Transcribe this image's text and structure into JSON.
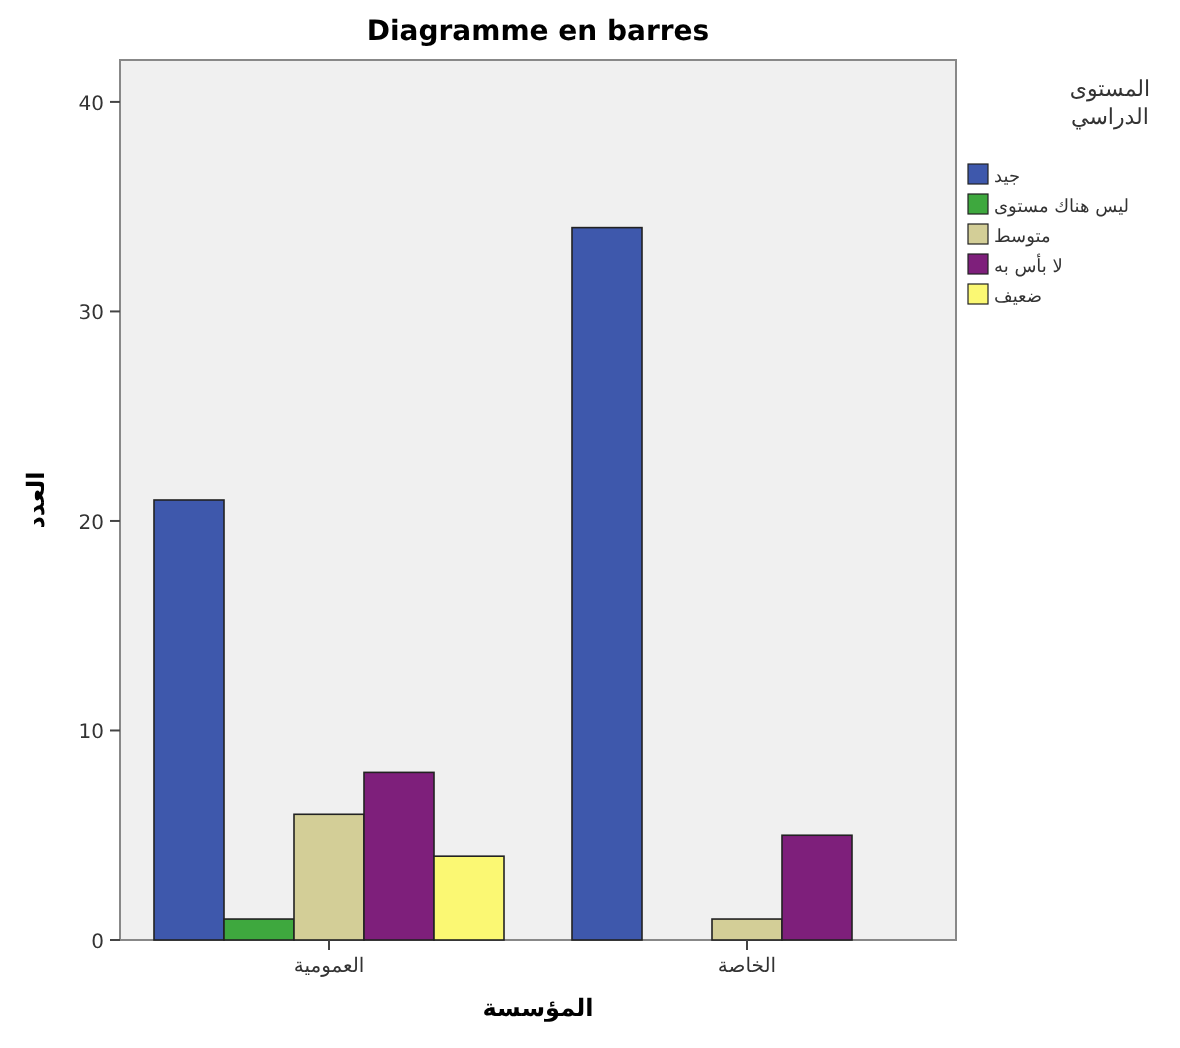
{
  "chart_data": {
    "type": "bar",
    "title": "Diagramme en barres",
    "xlabel": "المؤسسة",
    "ylabel": "العدد",
    "legend_title": "المستوى الدراسي",
    "categories": [
      "العمومية",
      "الخاصة"
    ],
    "series": [
      {
        "name": "جيد",
        "color": "#3e58ac",
        "values": [
          21,
          34
        ]
      },
      {
        "name": "ليس هناك مستوى",
        "color": "#3ea83e",
        "values": [
          1,
          null
        ]
      },
      {
        "name": "متوسط",
        "color": "#d3ce97",
        "values": [
          6,
          1
        ]
      },
      {
        "name": "لا بأس به",
        "color": "#7e1f7b",
        "values": [
          8,
          5
        ]
      },
      {
        "name": "ضعيف",
        "color": "#fbf873",
        "values": [
          4,
          null
        ]
      }
    ],
    "ylim": [
      0,
      42
    ],
    "yticks": [
      0,
      10,
      20,
      30,
      40
    ],
    "legend": "right"
  }
}
